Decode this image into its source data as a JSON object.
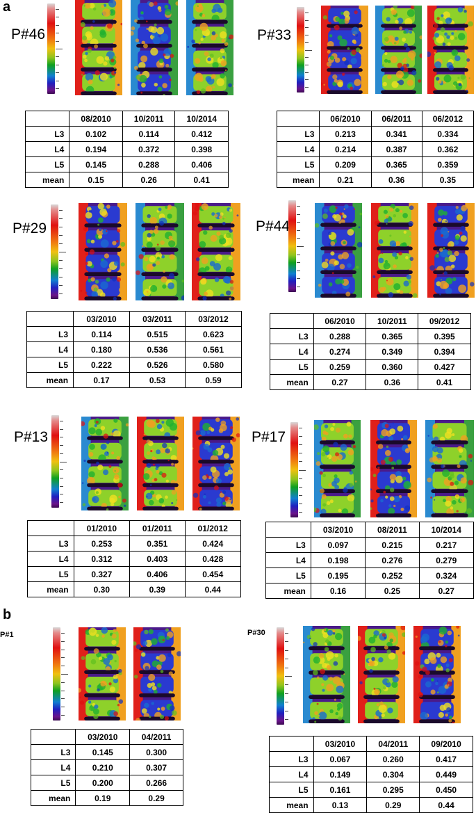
{
  "sections": {
    "a": "a",
    "b": "b"
  },
  "patients": [
    {
      "id": "P#46",
      "dates": [
        "08/2010",
        "10/2011",
        "10/2014"
      ],
      "rows": [
        {
          "label": "L3",
          "values": [
            "0.102",
            "0.114",
            "0.412"
          ]
        },
        {
          "label": "L4",
          "values": [
            "0.194",
            "0.372",
            "0.398"
          ]
        },
        {
          "label": "L5",
          "values": [
            "0.145",
            "0.288",
            "0.406"
          ]
        },
        {
          "label": "mean",
          "values": [
            "0.15",
            "0.26",
            "0.41"
          ]
        }
      ]
    },
    {
      "id": "P#33",
      "dates": [
        "06/2010",
        "06/2011",
        "06/2012"
      ],
      "rows": [
        {
          "label": "L3",
          "values": [
            "0.213",
            "0.341",
            "0.334"
          ]
        },
        {
          "label": "L4",
          "values": [
            "0.214",
            "0.387",
            "0.362"
          ]
        },
        {
          "label": "L5",
          "values": [
            "0.209",
            "0.365",
            "0.359"
          ]
        },
        {
          "label": "mean",
          "values": [
            "0.21",
            "0.36",
            "0.35"
          ]
        }
      ]
    },
    {
      "id": "P#29",
      "dates": [
        "03/2010",
        "03/2011",
        "03/2012"
      ],
      "rows": [
        {
          "label": "L3",
          "values": [
            "0.114",
            "0.515",
            "0.623"
          ]
        },
        {
          "label": "L4",
          "values": [
            "0.180",
            "0.536",
            "0.561"
          ]
        },
        {
          "label": "L5",
          "values": [
            "0.222",
            "0.526",
            "0.580"
          ]
        },
        {
          "label": "mean",
          "values": [
            "0.17",
            "0.53",
            "0.59"
          ]
        }
      ]
    },
    {
      "id": "P#44",
      "dates": [
        "06/2010",
        "10/2011",
        "09/2012"
      ],
      "rows": [
        {
          "label": "L3",
          "values": [
            "0.288",
            "0.365",
            "0.395"
          ]
        },
        {
          "label": "L4",
          "values": [
            "0.274",
            "0.349",
            "0.394"
          ]
        },
        {
          "label": "L5",
          "values": [
            "0.259",
            "0.360",
            "0.427"
          ]
        },
        {
          "label": "mean",
          "values": [
            "0.27",
            "0.36",
            "0.41"
          ]
        }
      ]
    },
    {
      "id": "P#13",
      "dates": [
        "01/2010",
        "01/2011",
        "01/2012"
      ],
      "rows": [
        {
          "label": "L3",
          "values": [
            "0.253",
            "0.351",
            "0.424"
          ]
        },
        {
          "label": "L4",
          "values": [
            "0.312",
            "0.403",
            "0.428"
          ]
        },
        {
          "label": "L5",
          "values": [
            "0.327",
            "0.406",
            "0.454"
          ]
        },
        {
          "label": "mean",
          "values": [
            "0.30",
            "0.39",
            "0.44"
          ]
        }
      ]
    },
    {
      "id": "P#17",
      "dates": [
        "03/2010",
        "08/2011",
        "10/2014"
      ],
      "rows": [
        {
          "label": "L3",
          "values": [
            "0.097",
            "0.215",
            "0.217"
          ]
        },
        {
          "label": "L4",
          "values": [
            "0.198",
            "0.276",
            "0.279"
          ]
        },
        {
          "label": "L5",
          "values": [
            "0.195",
            "0.252",
            "0.324"
          ]
        },
        {
          "label": "mean",
          "values": [
            "0.16",
            "0.25",
            "0.27"
          ]
        }
      ]
    },
    {
      "id": "P#1",
      "dates": [
        "03/2010",
        "04/2011"
      ],
      "rows": [
        {
          "label": "L3",
          "values": [
            "0.145",
            "0.300"
          ]
        },
        {
          "label": "L4",
          "values": [
            "0.210",
            "0.307"
          ]
        },
        {
          "label": "L5",
          "values": [
            "0.200",
            "0.266"
          ]
        },
        {
          "label": "mean",
          "values": [
            "0.19",
            "0.29"
          ]
        }
      ]
    },
    {
      "id": "P#30",
      "dates": [
        "03/2010",
        "04/2011",
        "09/2010"
      ],
      "rows": [
        {
          "label": "L3",
          "values": [
            "0.067",
            "0.260",
            "0.417"
          ]
        },
        {
          "label": "L4",
          "values": [
            "0.149",
            "0.304",
            "0.449"
          ]
        },
        {
          "label": "L5",
          "values": [
            "0.161",
            "0.295",
            "0.450"
          ]
        },
        {
          "label": "mean",
          "values": [
            "0.13",
            "0.29",
            "0.44"
          ]
        }
      ]
    }
  ],
  "colors": {
    "vertebra_bright": "#8ed12a",
    "vertebra_cool": "#2a3ad0",
    "disc_dark": "#1a0a2a",
    "hot": "#e0201a",
    "warm": "#f0a020"
  }
}
